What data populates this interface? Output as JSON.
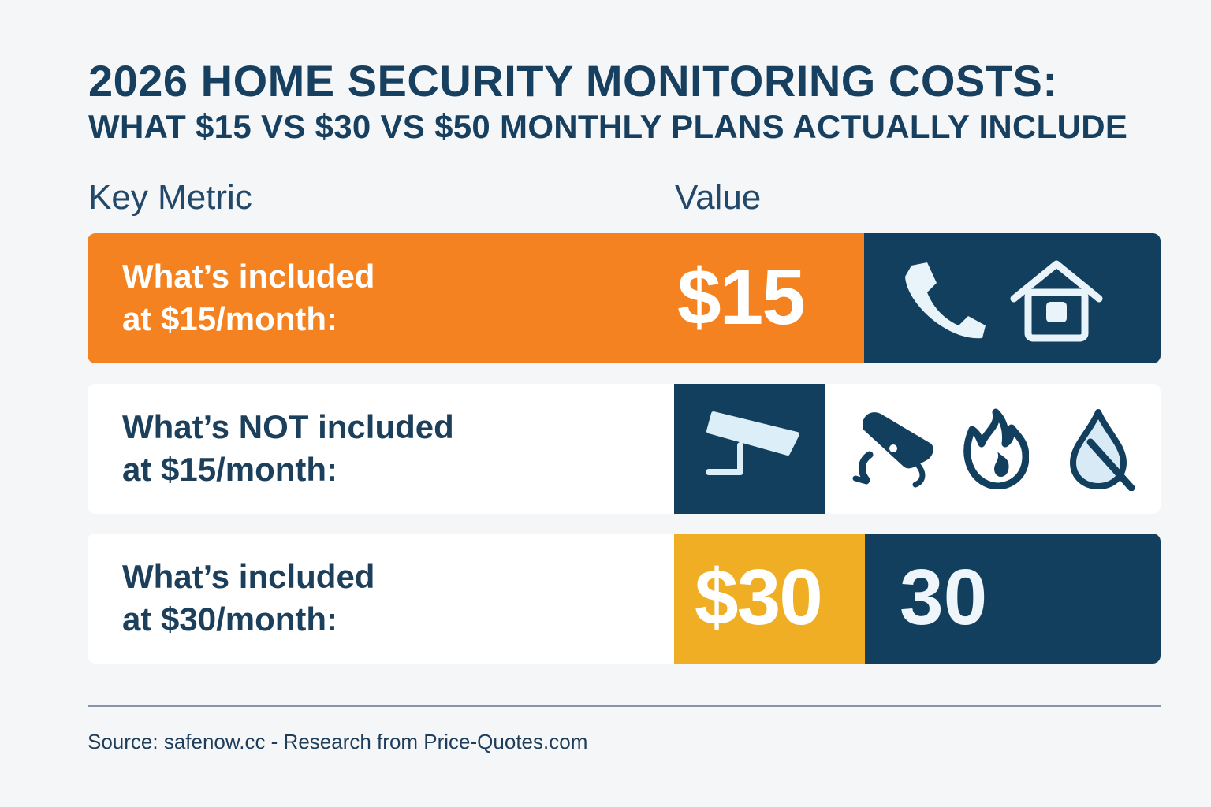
{
  "title": {
    "line1": "2026 HOME SECURITY MONITORING COSTS:",
    "line2": "WHAT $15 VS $30 VS $50 MONTHLY PLANS ACTUALLY INCLUDE"
  },
  "columns": {
    "metric": "Key Metric",
    "value": "Value"
  },
  "rows": [
    {
      "label": "What’s included\nat $15/month:",
      "price": "$15",
      "icons": [
        "phone-icon",
        "house-icon"
      ],
      "colors": {
        "primary": "#f58220",
        "secondary": "#123f5e"
      }
    },
    {
      "label": "What’s NOT included\nat $15/month:",
      "icons": [
        "security-camera-icon",
        "broken-camera-icon",
        "fire-icon",
        "water-drop-icon"
      ],
      "colors": {
        "primary": "#123f5e"
      }
    },
    {
      "label": "What’s included\nat $30/month:",
      "price": "$30",
      "secondary_text": "30",
      "colors": {
        "primary": "#f0ae24",
        "secondary": "#123f5e"
      }
    }
  ],
  "source": "Source: safenow.cc - Research from Price-Quotes.com"
}
